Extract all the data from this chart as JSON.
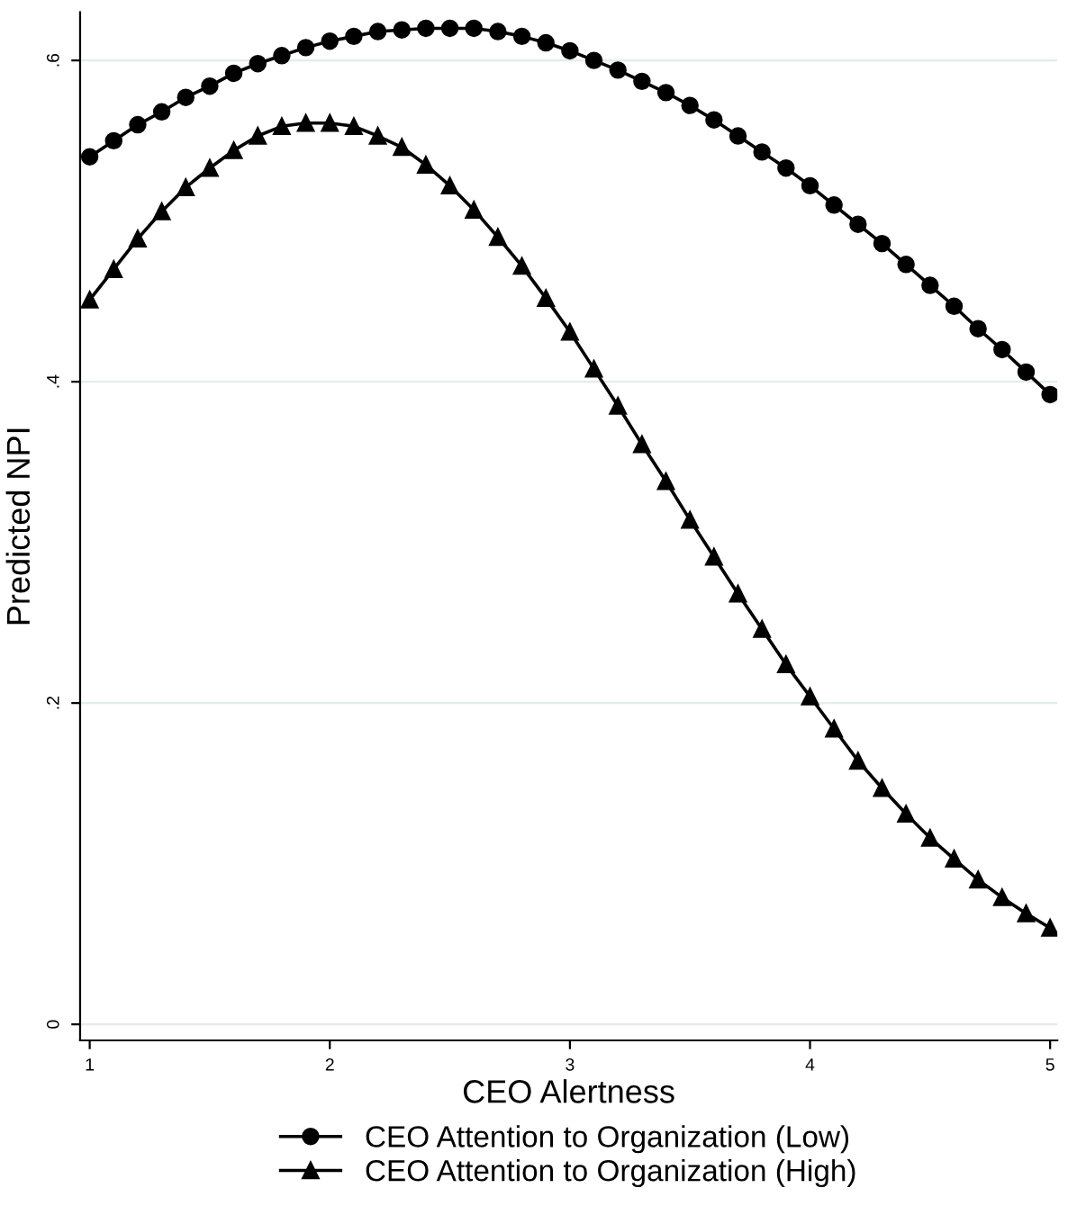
{
  "chart_data": {
    "type": "line",
    "xlabel": "CEO Alertness",
    "ylabel": "Predicted NPI",
    "x": [
      1.0,
      1.1,
      1.2,
      1.3,
      1.4,
      1.5,
      1.6,
      1.7,
      1.8,
      1.9,
      2.0,
      2.1,
      2.2,
      2.3,
      2.4,
      2.5,
      2.6,
      2.7,
      2.8,
      2.9,
      3.0,
      3.1,
      3.2,
      3.3,
      3.4,
      3.5,
      3.6,
      3.7,
      3.8,
      3.9,
      4.0,
      4.1,
      4.2,
      4.3,
      4.4,
      4.5,
      4.6,
      4.7,
      4.8,
      4.9,
      5.0
    ],
    "series": [
      {
        "name": "CEO Attention to Organization (Low)",
        "color": "#000000",
        "marker": "circle",
        "values": [
          0.54,
          0.55,
          0.56,
          0.568,
          0.577,
          0.584,
          0.592,
          0.598,
          0.603,
          0.608,
          0.612,
          0.615,
          0.618,
          0.619,
          0.62,
          0.62,
          0.62,
          0.618,
          0.615,
          0.611,
          0.606,
          0.6,
          0.594,
          0.587,
          0.58,
          0.572,
          0.563,
          0.553,
          0.543,
          0.533,
          0.522,
          0.51,
          0.498,
          0.486,
          0.473,
          0.46,
          0.447,
          0.433,
          0.42,
          0.406,
          0.392
        ]
      },
      {
        "name": "CEO Attention to Organization (High)",
        "color": "#000000",
        "marker": "triangle",
        "values": [
          0.451,
          0.47,
          0.489,
          0.506,
          0.521,
          0.533,
          0.544,
          0.553,
          0.559,
          0.561,
          0.561,
          0.559,
          0.553,
          0.546,
          0.535,
          0.522,
          0.507,
          0.49,
          0.472,
          0.452,
          0.431,
          0.408,
          0.385,
          0.361,
          0.338,
          0.314,
          0.291,
          0.268,
          0.246,
          0.224,
          0.204,
          0.184,
          0.164,
          0.147,
          0.131,
          0.116,
          0.103,
          0.09,
          0.079,
          0.069,
          0.06
        ]
      }
    ],
    "xlim": [
      0.96,
      5.03
    ],
    "ylim": [
      -0.01,
      0.63
    ],
    "xticks": [
      1,
      2,
      3,
      4,
      5
    ],
    "yticks": [
      {
        "value": 0,
        "label": "0"
      },
      {
        "value": 0.2,
        "label": ".2"
      },
      {
        "value": 0.4,
        "label": ".4"
      },
      {
        "value": 0.6,
        "label": ".6"
      }
    ],
    "grid": "y",
    "legend": "bottom",
    "line_style": "solid"
  }
}
